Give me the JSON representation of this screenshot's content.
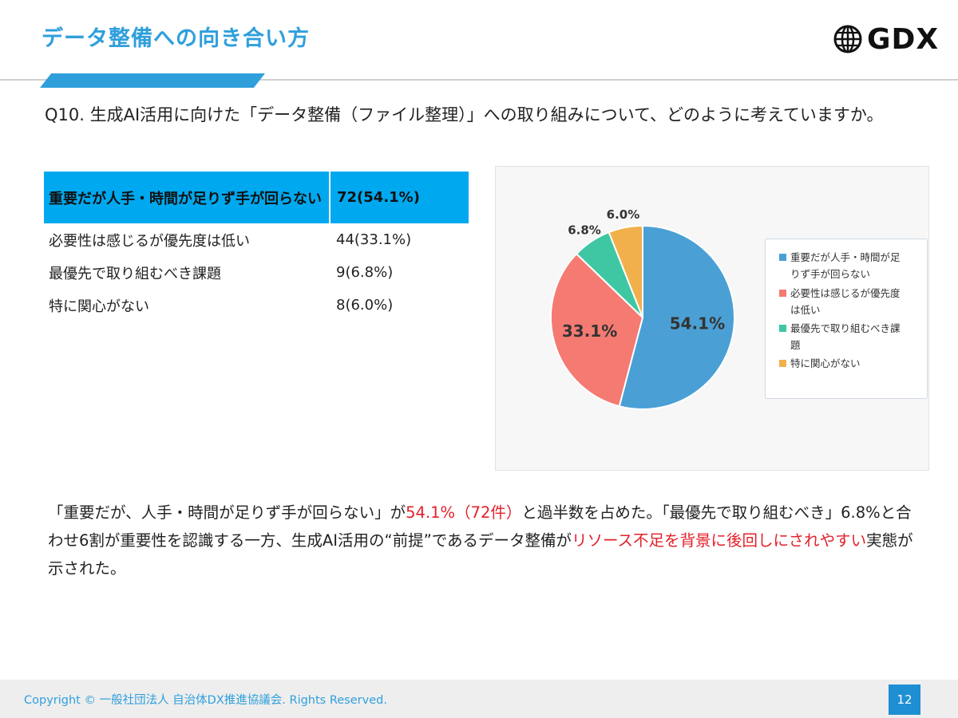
{
  "header": {
    "title": "データ整備への向き合い方",
    "logo_text": "GDX"
  },
  "question": "Q10. 生成AI活用に向けた「データ整備（ファイル整理）」への取り組みについて、どのように考えていますか。",
  "table": {
    "rows": [
      {
        "label": "重要だが人手・時間が足りず手が回らない",
        "value": "72(54.1%)"
      },
      {
        "label": "必要性は感じるが優先度は低い",
        "value": "44(33.1%)"
      },
      {
        "label": "最優先で取り組むべき課題",
        "value": "9(6.8%)"
      },
      {
        "label": "特に関心がない",
        "value": "8(6.0%)"
      }
    ]
  },
  "chart_data": {
    "type": "pie",
    "title": "",
    "legend_position": "right",
    "slices": [
      {
        "name": "重要だが人手・時間が足りず手が回らない",
        "value": 54.1,
        "label": "54.1%",
        "color": "#4aa0d5"
      },
      {
        "name": "必要性は感じるが優先度は低い",
        "value": 33.1,
        "label": "33.1%",
        "color": "#f47a72"
      },
      {
        "name": "最優先で取り組むべき課題",
        "value": 6.8,
        "label": "6.8%",
        "color": "#3ec7a2"
      },
      {
        "name": "特に関心がない",
        "value": 6.0,
        "label": "6.0%",
        "color": "#f1b04c"
      }
    ],
    "legend": [
      {
        "line1": "重要だが人手・時間が足",
        "line2": "りず手が回らない"
      },
      {
        "line1": "必要性は感じるが優先度",
        "line2": "は低い"
      },
      {
        "line1": "最優先で取り組むべき課",
        "line2": "題"
      },
      {
        "line1": "特に関心がない",
        "line2": ""
      }
    ]
  },
  "summary": {
    "s1": "「重要だが、人手・時間が足りず手が回らない」が",
    "s2": "54.1%（72件）",
    "s3": "と過半数を占めた。「最優先で取り組むべき」6.8%と合わせ6割が重要性を認識する一方、生成AI活用の“前提”であるデータ整備が",
    "s4": "リソース不足を背景に後回しにされやすい",
    "s5": "実態が示された。"
  },
  "footer": {
    "copyright": "Copyright © 一般社団法人 自治体DX推進協議会. Rights Reserved.",
    "page": "12"
  },
  "colors": {
    "accent": "#2f9fdc",
    "table_highlight": "#00a9ef",
    "emphasis_red": "#e3202a"
  }
}
